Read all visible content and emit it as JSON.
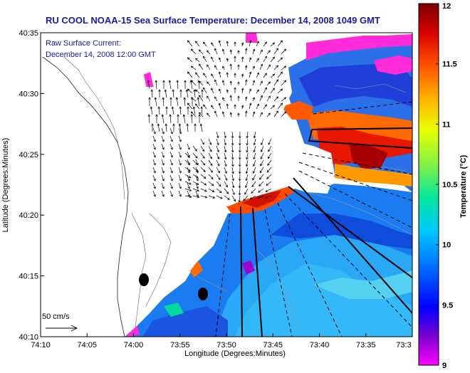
{
  "title": "RU COOL  NOAA-15  Sea Surface Temperature:  December 14, 2008 1049 GMT",
  "subtitle_line1": "Raw Surface Current:",
  "subtitle_line2": "December 14, 2008 12:00 GMT",
  "x_axis_label": "Longitude (Degrees:Minutes)",
  "y_axis_label": "Latitude (Degrees:Minutes)",
  "colorbar_label": "Temperature (°C)",
  "scale_label": "50 cm/s",
  "x_ticks": [
    "74:10",
    "74:05",
    "74:00",
    "73:55",
    "73:50",
    "73:45",
    "73:40",
    "73:35",
    "73:3"
  ],
  "y_ticks": [
    "40:35",
    "40:30",
    "40:25",
    "40:20",
    "40:15",
    "40:10"
  ],
  "colorbar_ticks": [
    "12",
    "11.5",
    "11",
    "10.5",
    "10",
    "9.5",
    "9"
  ],
  "colors": {
    "title_color": "#1a1aa8",
    "subtitle_color": "#1a1aa8",
    "land": "#ffffff",
    "contour": "#8a8a8a",
    "shoreline": "#333333",
    "arrows": "#000000"
  },
  "colorbar_gradient": [
    "#ff00ff",
    "#7a00d0",
    "#0000ff",
    "#006cff",
    "#00c8ff",
    "#00e6a0",
    "#7cf04a",
    "#e8ff00",
    "#ffb000",
    "#ff5000",
    "#d80000",
    "#7a0000"
  ],
  "colorbar_range": [
    9,
    12
  ]
}
